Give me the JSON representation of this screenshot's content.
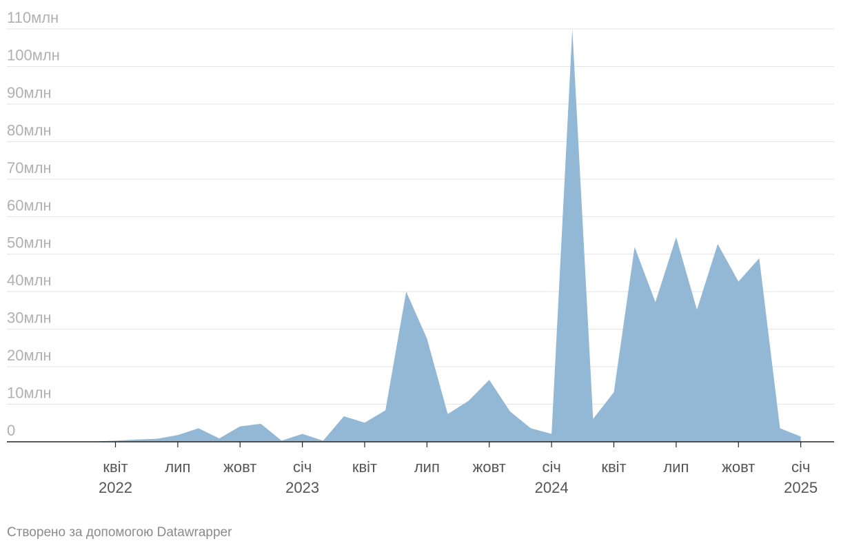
{
  "chart_data": {
    "type": "area",
    "series": [
      {
        "x": [
          "2022-02",
          "2022-03",
          "2022-04",
          "2022-05",
          "2022-06",
          "2022-07",
          "2022-08",
          "2022-09",
          "2022-10",
          "2022-11",
          "2022-12",
          "2023-01",
          "2023-02",
          "2023-03",
          "2023-04",
          "2023-05",
          "2023-06",
          "2023-07",
          "2023-08",
          "2023-09",
          "2023-10",
          "2023-11",
          "2023-12",
          "2024-01",
          "2024-02",
          "2024-03",
          "2024-04",
          "2024-05",
          "2024-06",
          "2024-07",
          "2024-08",
          "2024-09",
          "2024-10",
          "2024-11",
          "2024-12",
          "2025-01",
          "2025-02"
        ],
        "values": [
          0,
          0.1,
          0.3,
          0.6,
          0.8,
          1.8,
          3.6,
          0.9,
          4.1,
          4.8,
          0.3,
          2.1,
          0.3,
          6.8,
          5.1,
          8.4,
          40,
          27.5,
          7.4,
          10.9,
          16.5,
          8.1,
          3.6,
          2.1,
          110,
          6.1,
          13.2,
          51.9,
          37.2,
          54.5,
          35.2,
          52.7,
          42.7,
          48.9,
          3.6,
          1.4,
          null
        ]
      }
    ],
    "color": "#92b8d5",
    "ylim": [
      0,
      110
    ],
    "yticks": [
      {
        "value": 0,
        "label": "0"
      },
      {
        "value": 10,
        "label": "10млн"
      },
      {
        "value": 20,
        "label": "20млн"
      },
      {
        "value": 30,
        "label": "30млн"
      },
      {
        "value": 40,
        "label": "40млн"
      },
      {
        "value": 50,
        "label": "50млн"
      },
      {
        "value": 60,
        "label": "60млн"
      },
      {
        "value": 70,
        "label": "70млн"
      },
      {
        "value": 80,
        "label": "80млн"
      },
      {
        "value": 90,
        "label": "90млн"
      },
      {
        "value": 100,
        "label": "100млн"
      },
      {
        "value": 110,
        "label": "110млн"
      }
    ],
    "xticks": [
      {
        "x": "2022-04",
        "label": "квіт",
        "year": "2022"
      },
      {
        "x": "2022-07",
        "label": "лип",
        "year": ""
      },
      {
        "x": "2022-10",
        "label": "жовт",
        "year": ""
      },
      {
        "x": "2023-01",
        "label": "січ",
        "year": "2023"
      },
      {
        "x": "2023-04",
        "label": "квіт",
        "year": ""
      },
      {
        "x": "2023-07",
        "label": "лип",
        "year": ""
      },
      {
        "x": "2023-10",
        "label": "жовт",
        "year": ""
      },
      {
        "x": "2024-01",
        "label": "січ",
        "year": "2024"
      },
      {
        "x": "2024-04",
        "label": "квіт",
        "year": ""
      },
      {
        "x": "2024-07",
        "label": "лип",
        "year": ""
      },
      {
        "x": "2024-10",
        "label": "жовт",
        "year": ""
      },
      {
        "x": "2025-01",
        "label": "січ",
        "year": "2025"
      }
    ],
    "grid": true
  },
  "footer": {
    "credit": "Створено за допомогою Datawrapper"
  }
}
